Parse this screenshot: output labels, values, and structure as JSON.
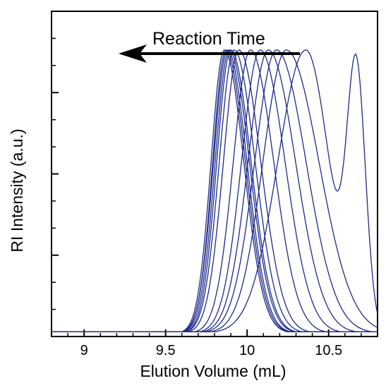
{
  "chart_data": {
    "type": "line",
    "title": "",
    "xlabel": "Elution Volume (mL)",
    "ylabel": "RI Intensity (a.u.)",
    "xlim": [
      8.8,
      10.8
    ],
    "ylim": [
      -0.01,
      1.0
    ],
    "y_minor_ticks": 12,
    "x_ticks": [
      9,
      9.5,
      10,
      10.5
    ],
    "x_tick_labels": [
      "9",
      "9.5",
      "10",
      "10.5"
    ],
    "y_tick_labels_shown": false,
    "grid": false,
    "line_color": "#1c2a8a",
    "annotation": {
      "text": "Reaction Time",
      "arrow_direction": "left"
    },
    "series": [
      {
        "peak": 9.86,
        "w_left": 0.17,
        "w_right": 0.25,
        "height": 0.88
      },
      {
        "peak": 9.87,
        "w_left": 0.17,
        "w_right": 0.25,
        "height": 0.88
      },
      {
        "peak": 9.88,
        "w_left": 0.18,
        "w_right": 0.25,
        "height": 0.88
      },
      {
        "peak": 9.89,
        "w_left": 0.18,
        "w_right": 0.26,
        "height": 0.88
      },
      {
        "peak": 9.9,
        "w_left": 0.18,
        "w_right": 0.26,
        "height": 0.88
      },
      {
        "peak": 9.92,
        "w_left": 0.19,
        "w_right": 0.27,
        "height": 0.88
      },
      {
        "peak": 9.95,
        "w_left": 0.2,
        "w_right": 0.28,
        "height": 0.88
      },
      {
        "peak": 10.02,
        "w_left": 0.22,
        "w_right": 0.3,
        "height": 0.88
      },
      {
        "peak": 10.08,
        "w_left": 0.24,
        "w_right": 0.32,
        "height": 0.88
      },
      {
        "peak": 10.13,
        "w_left": 0.26,
        "w_right": 0.35,
        "height": 0.88
      },
      {
        "peak": 10.18,
        "w_left": 0.28,
        "w_right": 0.38,
        "height": 0.88
      },
      {
        "peak": 10.24,
        "w_left": 0.3,
        "w_right": 0.42,
        "height": 0.88
      },
      {
        "peak": 10.36,
        "w_left": 0.36,
        "w_right": 0.3,
        "height": 0.88,
        "second_peak": 10.67,
        "second_height": 0.78,
        "second_width": 0.1
      }
    ],
    "baseline": 0.005
  }
}
